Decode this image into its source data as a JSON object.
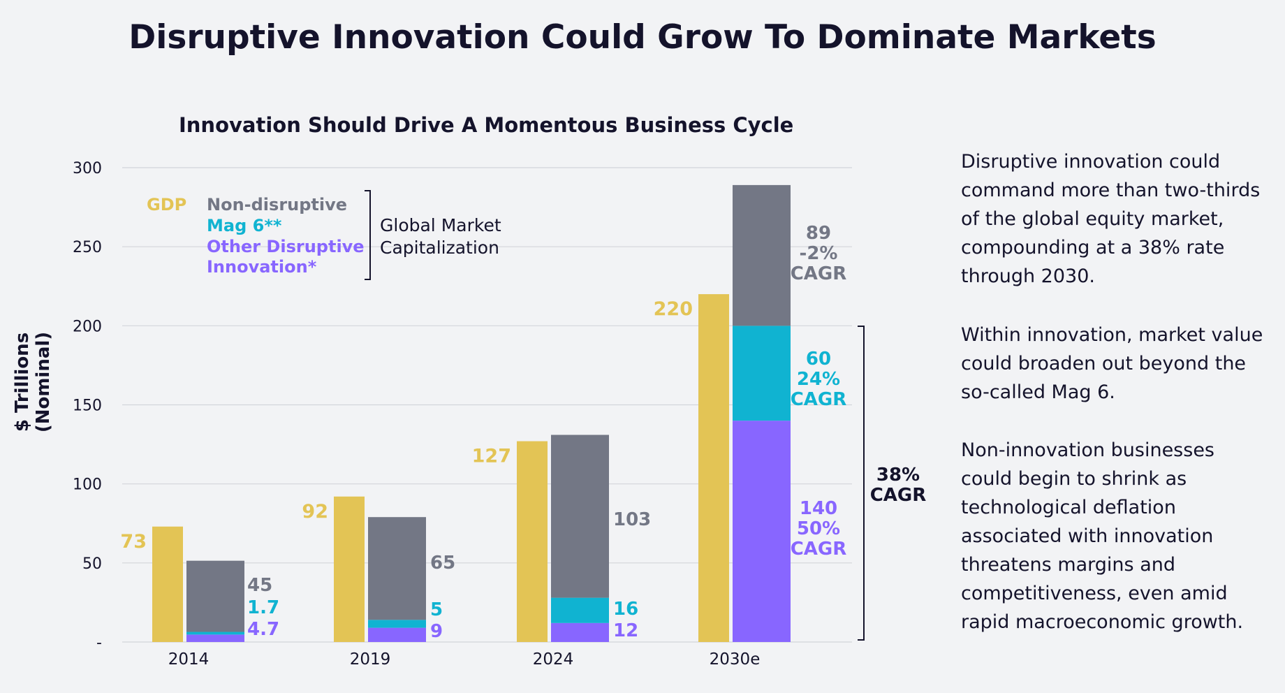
{
  "title": "Disruptive Innovation Could Grow To Dominate Markets",
  "chart_data": {
    "type": "bar",
    "title": "Innovation Should Drive A Momentous Business Cycle",
    "ylabel_line1": "$ Trillions",
    "ylabel_line2": "(Nominal)",
    "ylim": [
      0,
      300
    ],
    "yticks": [
      "-",
      "50",
      "100",
      "150",
      "200",
      "250",
      "300"
    ],
    "categories": [
      "2014",
      "2019",
      "2024",
      "2030e"
    ],
    "gdp": {
      "name": "GDP",
      "color": "#e3c455",
      "values": [
        73,
        92,
        127,
        220
      ],
      "labels": [
        "73",
        "92",
        "127",
        "220"
      ]
    },
    "market_cap_stack": [
      {
        "name": "Other Disruptive Innovation*",
        "name_lines": [
          "Other Disruptive",
          "Innovation*"
        ],
        "color": "#8866ff",
        "values": [
          4.7,
          9,
          12,
          140
        ],
        "labels": [
          [
            "4.7"
          ],
          [
            "9"
          ],
          [
            "12"
          ],
          [
            "140",
            "50%",
            "CAGR"
          ]
        ]
      },
      {
        "name": "Mag 6**",
        "color": "#10b3d1",
        "values": [
          1.7,
          5,
          16,
          60
        ],
        "labels": [
          [
            "1.7"
          ],
          [
            "5"
          ],
          [
            "16"
          ],
          [
            "60",
            "24%",
            "CAGR"
          ]
        ]
      },
      {
        "name": "Non-disruptive",
        "color": "#737785",
        "values": [
          45,
          65,
          103,
          89
        ],
        "labels": [
          [
            "45"
          ],
          [
            "65"
          ],
          [
            "103"
          ],
          [
            "89",
            "-2%",
            "CAGR"
          ]
        ]
      }
    ],
    "legend_group_label": [
      "Global Market",
      "Capitalization"
    ],
    "bracket_label": [
      "38%",
      "CAGR"
    ],
    "grid": true,
    "legend_position": "top-left"
  },
  "side_text": [
    [
      "Disruptive innovation could",
      "command more than two-thirds",
      "of the global equity market,",
      "compounding at a 38% rate",
      "through 2030."
    ],
    [
      "Within innovation, market value",
      "could broaden out beyond the",
      "so-called Mag 6."
    ],
    [
      "Non-innovation businesses",
      "could begin to shrink as",
      "technological deflation",
      "associated with innovation",
      "threatens margins and",
      "competitiveness, even amid",
      "rapid macroeconomic growth."
    ]
  ]
}
